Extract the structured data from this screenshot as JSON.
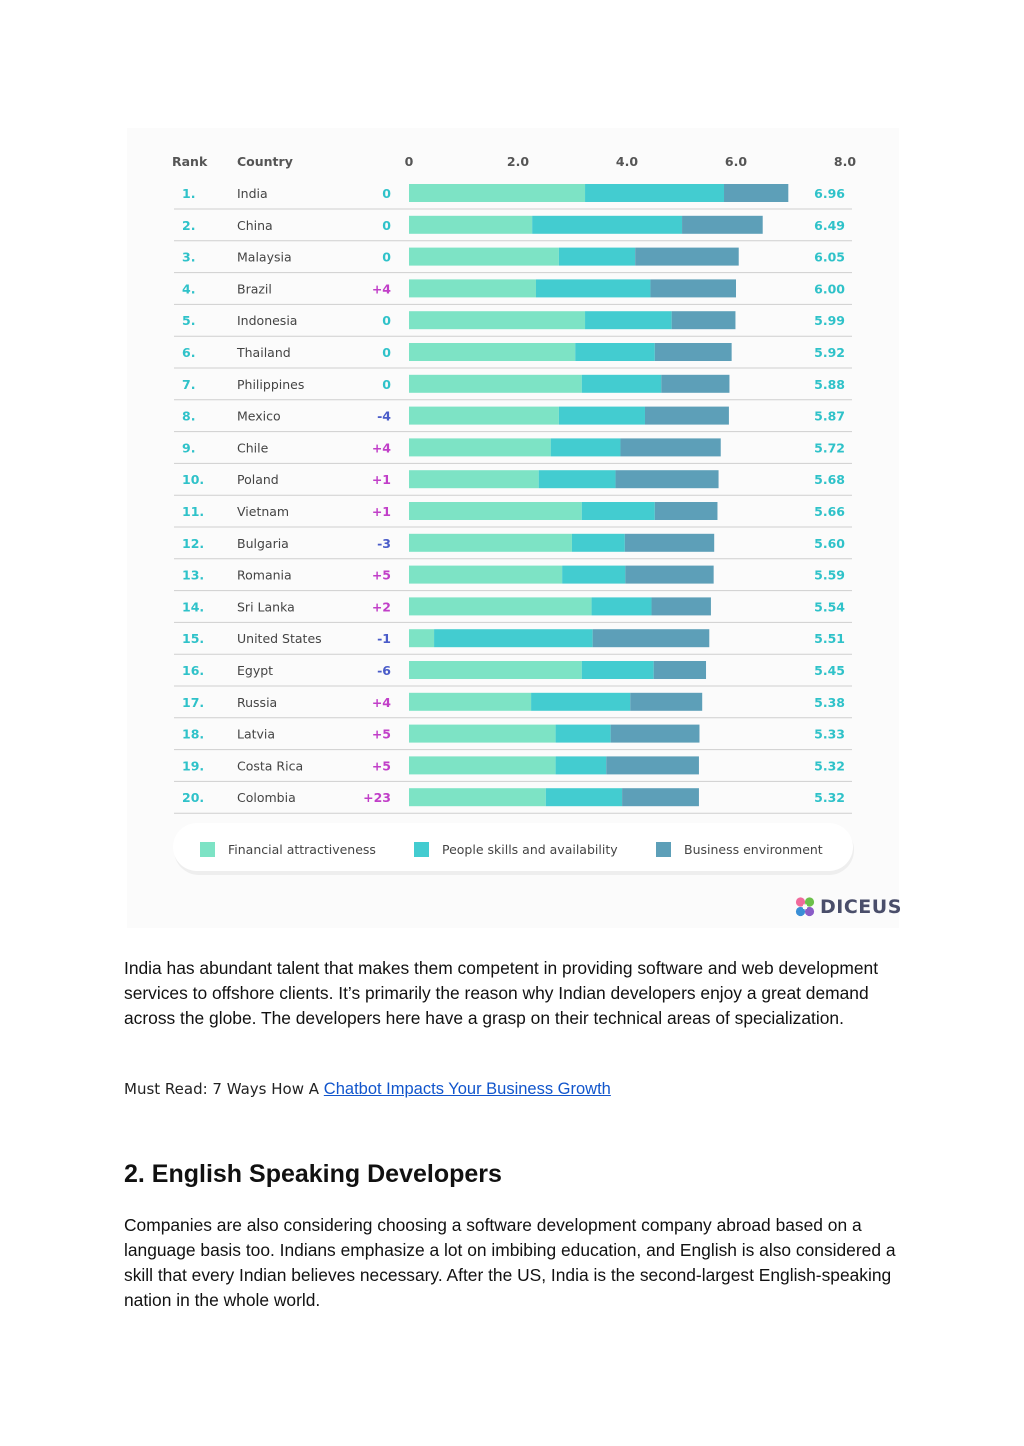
{
  "chart_data": {
    "type": "bar",
    "stacked": true,
    "orientation": "horizontal",
    "column_headers": {
      "rank": "Rank",
      "country": "Country"
    },
    "x_ticks": [
      "0",
      "2.0",
      "4.0",
      "6.0",
      "8.0"
    ],
    "xlim": [
      0,
      8
    ],
    "categories": [
      "India",
      "China",
      "Malaysia",
      "Brazil",
      "Indonesia",
      "Thailand",
      "Philippines",
      "Mexico",
      "Chile",
      "Poland",
      "Vietnam",
      "Bulgaria",
      "Romania",
      "Sri Lanka",
      "United States",
      "Egypt",
      "Russia",
      "Latvia",
      "Costa Rica",
      "Colombia"
    ],
    "ranks": [
      "1.",
      "2.",
      "3.",
      "4.",
      "5.",
      "6.",
      "7.",
      "8.",
      "9.",
      "10.",
      "11.",
      "12.",
      "13.",
      "14.",
      "15.",
      "16.",
      "17.",
      "18.",
      "19.",
      "20."
    ],
    "rank_changes": [
      "0",
      "0",
      "0",
      "+4",
      "0",
      "0",
      "0",
      "-4",
      "+4",
      "+1",
      "+1",
      "-3",
      "+5",
      "+2",
      "-1",
      "-6",
      "+4",
      "+5",
      "+5",
      "+23"
    ],
    "totals": [
      "6.96",
      "6.49",
      "6.05",
      "6.00",
      "5.99",
      "5.92",
      "5.88",
      "5.87",
      "5.72",
      "5.68",
      "5.66",
      "5.60",
      "5.59",
      "5.54",
      "5.51",
      "5.45",
      "5.38",
      "5.33",
      "5.32",
      "5.32"
    ],
    "series": [
      {
        "name": "Financial attractiveness",
        "color": "#7de3c5",
        "values": [
          3.23,
          2.26,
          2.75,
          2.33,
          3.23,
          3.05,
          3.17,
          2.75,
          2.6,
          2.38,
          3.17,
          2.99,
          2.81,
          3.35,
          0.46,
          3.17,
          2.24,
          2.69,
          2.69,
          2.51
        ]
      },
      {
        "name": "People skills and availability",
        "color": "#43ccd0",
        "values": [
          2.55,
          2.75,
          1.4,
          2.1,
          1.59,
          1.46,
          1.46,
          1.58,
          1.28,
          1.41,
          1.34,
          0.97,
          1.16,
          1.1,
          2.91,
          1.32,
          1.82,
          1.01,
          0.93,
          1.4
        ]
      },
      {
        "name": "Business environment",
        "color": "#5d9fb8",
        "values": [
          1.18,
          1.48,
          1.9,
          1.57,
          1.17,
          1.41,
          1.25,
          1.54,
          1.84,
          1.89,
          1.15,
          1.64,
          1.62,
          1.09,
          2.14,
          0.96,
          1.32,
          1.63,
          1.7,
          1.41
        ]
      }
    ],
    "legend_position": "bottom",
    "title": "",
    "xlabel": "",
    "ylabel": ""
  },
  "logo": {
    "text": "DICEUS"
  },
  "paragraph_1": "India has abundant talent that makes them competent in providing software and web development services to offshore clients. It’s primarily the reason why Indian developers enjoy a great demand across the globe. The developers here have a grasp on their technical areas of specialization.",
  "must_read": {
    "lead": "Must Read: 7 Ways How A ",
    "link_text": "Chatbot Impacts Your Business Growth"
  },
  "section_heading": "2. English Speaking Developers",
  "paragraph_2": "Companies are also considering choosing a software development company abroad based on a language basis too. Indians emphasize a lot on imbibing education, and English is also considered a skill that every Indian believes necessary. After the US, India is the second-largest English-speaking nation in the whole world.",
  "colors": {
    "positive_change": "#c13fc8",
    "negative_change": "#4a5cc9",
    "zero_change": "#2fc2c9",
    "link": "#1155cc"
  }
}
